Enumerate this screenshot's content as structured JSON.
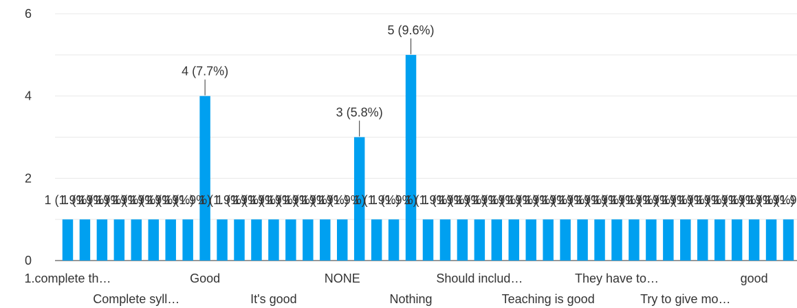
{
  "chart_data": {
    "type": "bar",
    "ylim": [
      0,
      6
    ],
    "yticks": [
      0,
      2,
      4,
      6
    ],
    "grid": true,
    "bar_color": "#00a0f0",
    "values": [
      1,
      1,
      1,
      1,
      1,
      1,
      1,
      1,
      4,
      1,
      1,
      1,
      1,
      1,
      1,
      1,
      1,
      3,
      1,
      1,
      5,
      1,
      1,
      1,
      1,
      1,
      1,
      1,
      1,
      1,
      1,
      1,
      1,
      1,
      1,
      1,
      1,
      1,
      1,
      1,
      1,
      1,
      1
    ],
    "data_labels": [
      "1 (1.9%)",
      "1 (1.9%)",
      "1 (1.9%)",
      "1 (1.9%)",
      "1 (1.9%)",
      "1 (1.9%)",
      "1 (1.9%)",
      "1 (1.9%)",
      "4 (7.7%)",
      "1 (1.9%)",
      "1 (1.9%)",
      "1 (1.9%)",
      "1 (1.9%)",
      "1 (1.9%)",
      "1 (1.9%)",
      "1 (1.9%)",
      "1 (1.9%)",
      "3 (5.8%)",
      "1 (1.9%)",
      "1 (1.9%)",
      "5 (9.6%)",
      "1 (1.9%)",
      "1 (1.9%)",
      "1 (1.9%)",
      "1 (1.9%)",
      "1 (1.9%)",
      "1 (1.9%)",
      "1 (1.9%)",
      "1 (1.9%)",
      "1 (1.9%)",
      "1 (1.9%)",
      "1 (1.9%)",
      "1 (1.9%)",
      "1 (1.9%)",
      "1 (1.9%)",
      "1 (1.9%)",
      "1 (1.9%)",
      "1 (1.9%)",
      "1 (1.9%)",
      "1 (1.9%)",
      "1 (1.9%)",
      "1 (1.9%)",
      "1 (1.9%)"
    ],
    "visible_category_labels": [
      {
        "index": 0,
        "row": 1,
        "label": "1.complete th…"
      },
      {
        "index": 4,
        "row": 2,
        "label": "Complete syll…"
      },
      {
        "index": 8,
        "row": 1,
        "label": "Good"
      },
      {
        "index": 12,
        "row": 2,
        "label": "It's good"
      },
      {
        "index": 16,
        "row": 1,
        "label": "NONE"
      },
      {
        "index": 20,
        "row": 2,
        "label": "Nothing"
      },
      {
        "index": 24,
        "row": 1,
        "label": "Should includ…"
      },
      {
        "index": 28,
        "row": 2,
        "label": "Teaching is good"
      },
      {
        "index": 32,
        "row": 1,
        "label": "They have to…"
      },
      {
        "index": 36,
        "row": 2,
        "label": "Try to give mo…"
      },
      {
        "index": 40,
        "row": 1,
        "label": "good"
      }
    ]
  }
}
